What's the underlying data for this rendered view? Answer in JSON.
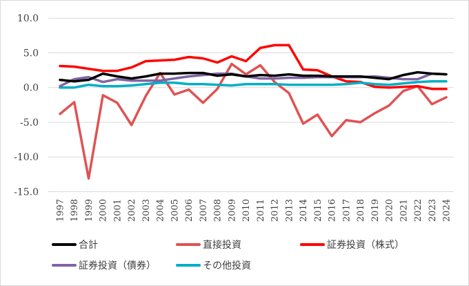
{
  "chart_data": {
    "type": "line",
    "title": "",
    "xlabel": "",
    "ylabel": "",
    "ylim": [
      -15,
      10
    ],
    "yticks": [
      "10.0",
      "5.0",
      "0.0",
      "-5.0",
      "-10.0",
      "-15.0"
    ],
    "ytick_values": [
      10,
      5,
      0,
      -5,
      -10,
      -15
    ],
    "grid": "horizontal",
    "legend_position": "bottom",
    "categories": [
      "1997",
      "1998",
      "1999",
      "2000",
      "2001",
      "2002",
      "2003",
      "2004",
      "2005",
      "2006",
      "2007",
      "2008",
      "2009",
      "2010",
      "2011",
      "2012",
      "2013",
      "2014",
      "2015",
      "2016",
      "2017",
      "2018",
      "2019",
      "2020",
      "2021",
      "2022",
      "2023",
      "2024"
    ],
    "series": [
      {
        "name": "直接投資",
        "color": "#E05252",
        "values": [
          -3.8,
          -2.1,
          -13.1,
          -1.1,
          -2.2,
          -5.4,
          -1.2,
          2.1,
          -1.0,
          -0.3,
          -2.2,
          -0.2,
          3.4,
          1.9,
          3.2,
          0.8,
          -0.8,
          -5.2,
          -3.9,
          -7.0,
          -4.7,
          -5.0,
          -3.7,
          -2.6,
          -0.5,
          0.2,
          -2.4,
          -1.4
        ]
      },
      {
        "name": "証券投資（株式）",
        "color": "#FF0000",
        "values": [
          3.1,
          3.0,
          2.7,
          2.4,
          2.4,
          2.9,
          3.8,
          3.9,
          4.0,
          4.4,
          4.2,
          3.6,
          4.5,
          3.8,
          5.7,
          6.1,
          6.1,
          2.6,
          2.5,
          1.6,
          0.9,
          0.8,
          0.1,
          0.0,
          0.1,
          0.2,
          -0.2,
          -0.2
        ]
      },
      {
        "name": "その他投資",
        "color": "#00AFC4",
        "values": [
          0.0,
          0.0,
          0.4,
          0.2,
          0.2,
          0.3,
          0.5,
          0.7,
          0.7,
          0.5,
          0.5,
          0.4,
          0.3,
          0.5,
          0.5,
          0.5,
          0.4,
          0.4,
          0.4,
          0.4,
          0.5,
          0.7,
          0.5,
          0.4,
          0.6,
          0.8,
          0.9,
          0.9
        ]
      },
      {
        "name": "証券投資（債券）",
        "color": "#8064A2",
        "values": [
          0.2,
          1.2,
          1.5,
          0.8,
          1.2,
          1.0,
          1.0,
          1.0,
          1.3,
          1.6,
          1.8,
          2.0,
          2.0,
          1.6,
          1.3,
          1.3,
          1.4,
          1.4,
          1.5,
          1.5,
          1.5,
          1.5,
          1.6,
          1.4,
          1.2,
          1.2,
          2.0,
          1.9
        ]
      },
      {
        "name": "合計",
        "color": "#000000",
        "values": [
          1.1,
          0.9,
          1.1,
          2.0,
          1.6,
          1.3,
          1.6,
          2.0,
          2.0,
          2.1,
          2.1,
          1.7,
          1.9,
          1.6,
          1.8,
          1.7,
          1.9,
          1.7,
          1.7,
          1.6,
          1.6,
          1.6,
          1.4,
          1.2,
          1.8,
          2.2,
          2.0,
          1.9
        ]
      }
    ],
    "legend": [
      {
        "name": "合計",
        "color": "#000000"
      },
      {
        "name": "直接投資",
        "color": "#E05252"
      },
      {
        "name": "証券投資（株式）",
        "color": "#FF0000"
      },
      {
        "name": "証券投資（債券）",
        "color": "#8064A2"
      },
      {
        "name": "その他投資",
        "color": "#00AFC4"
      }
    ]
  }
}
